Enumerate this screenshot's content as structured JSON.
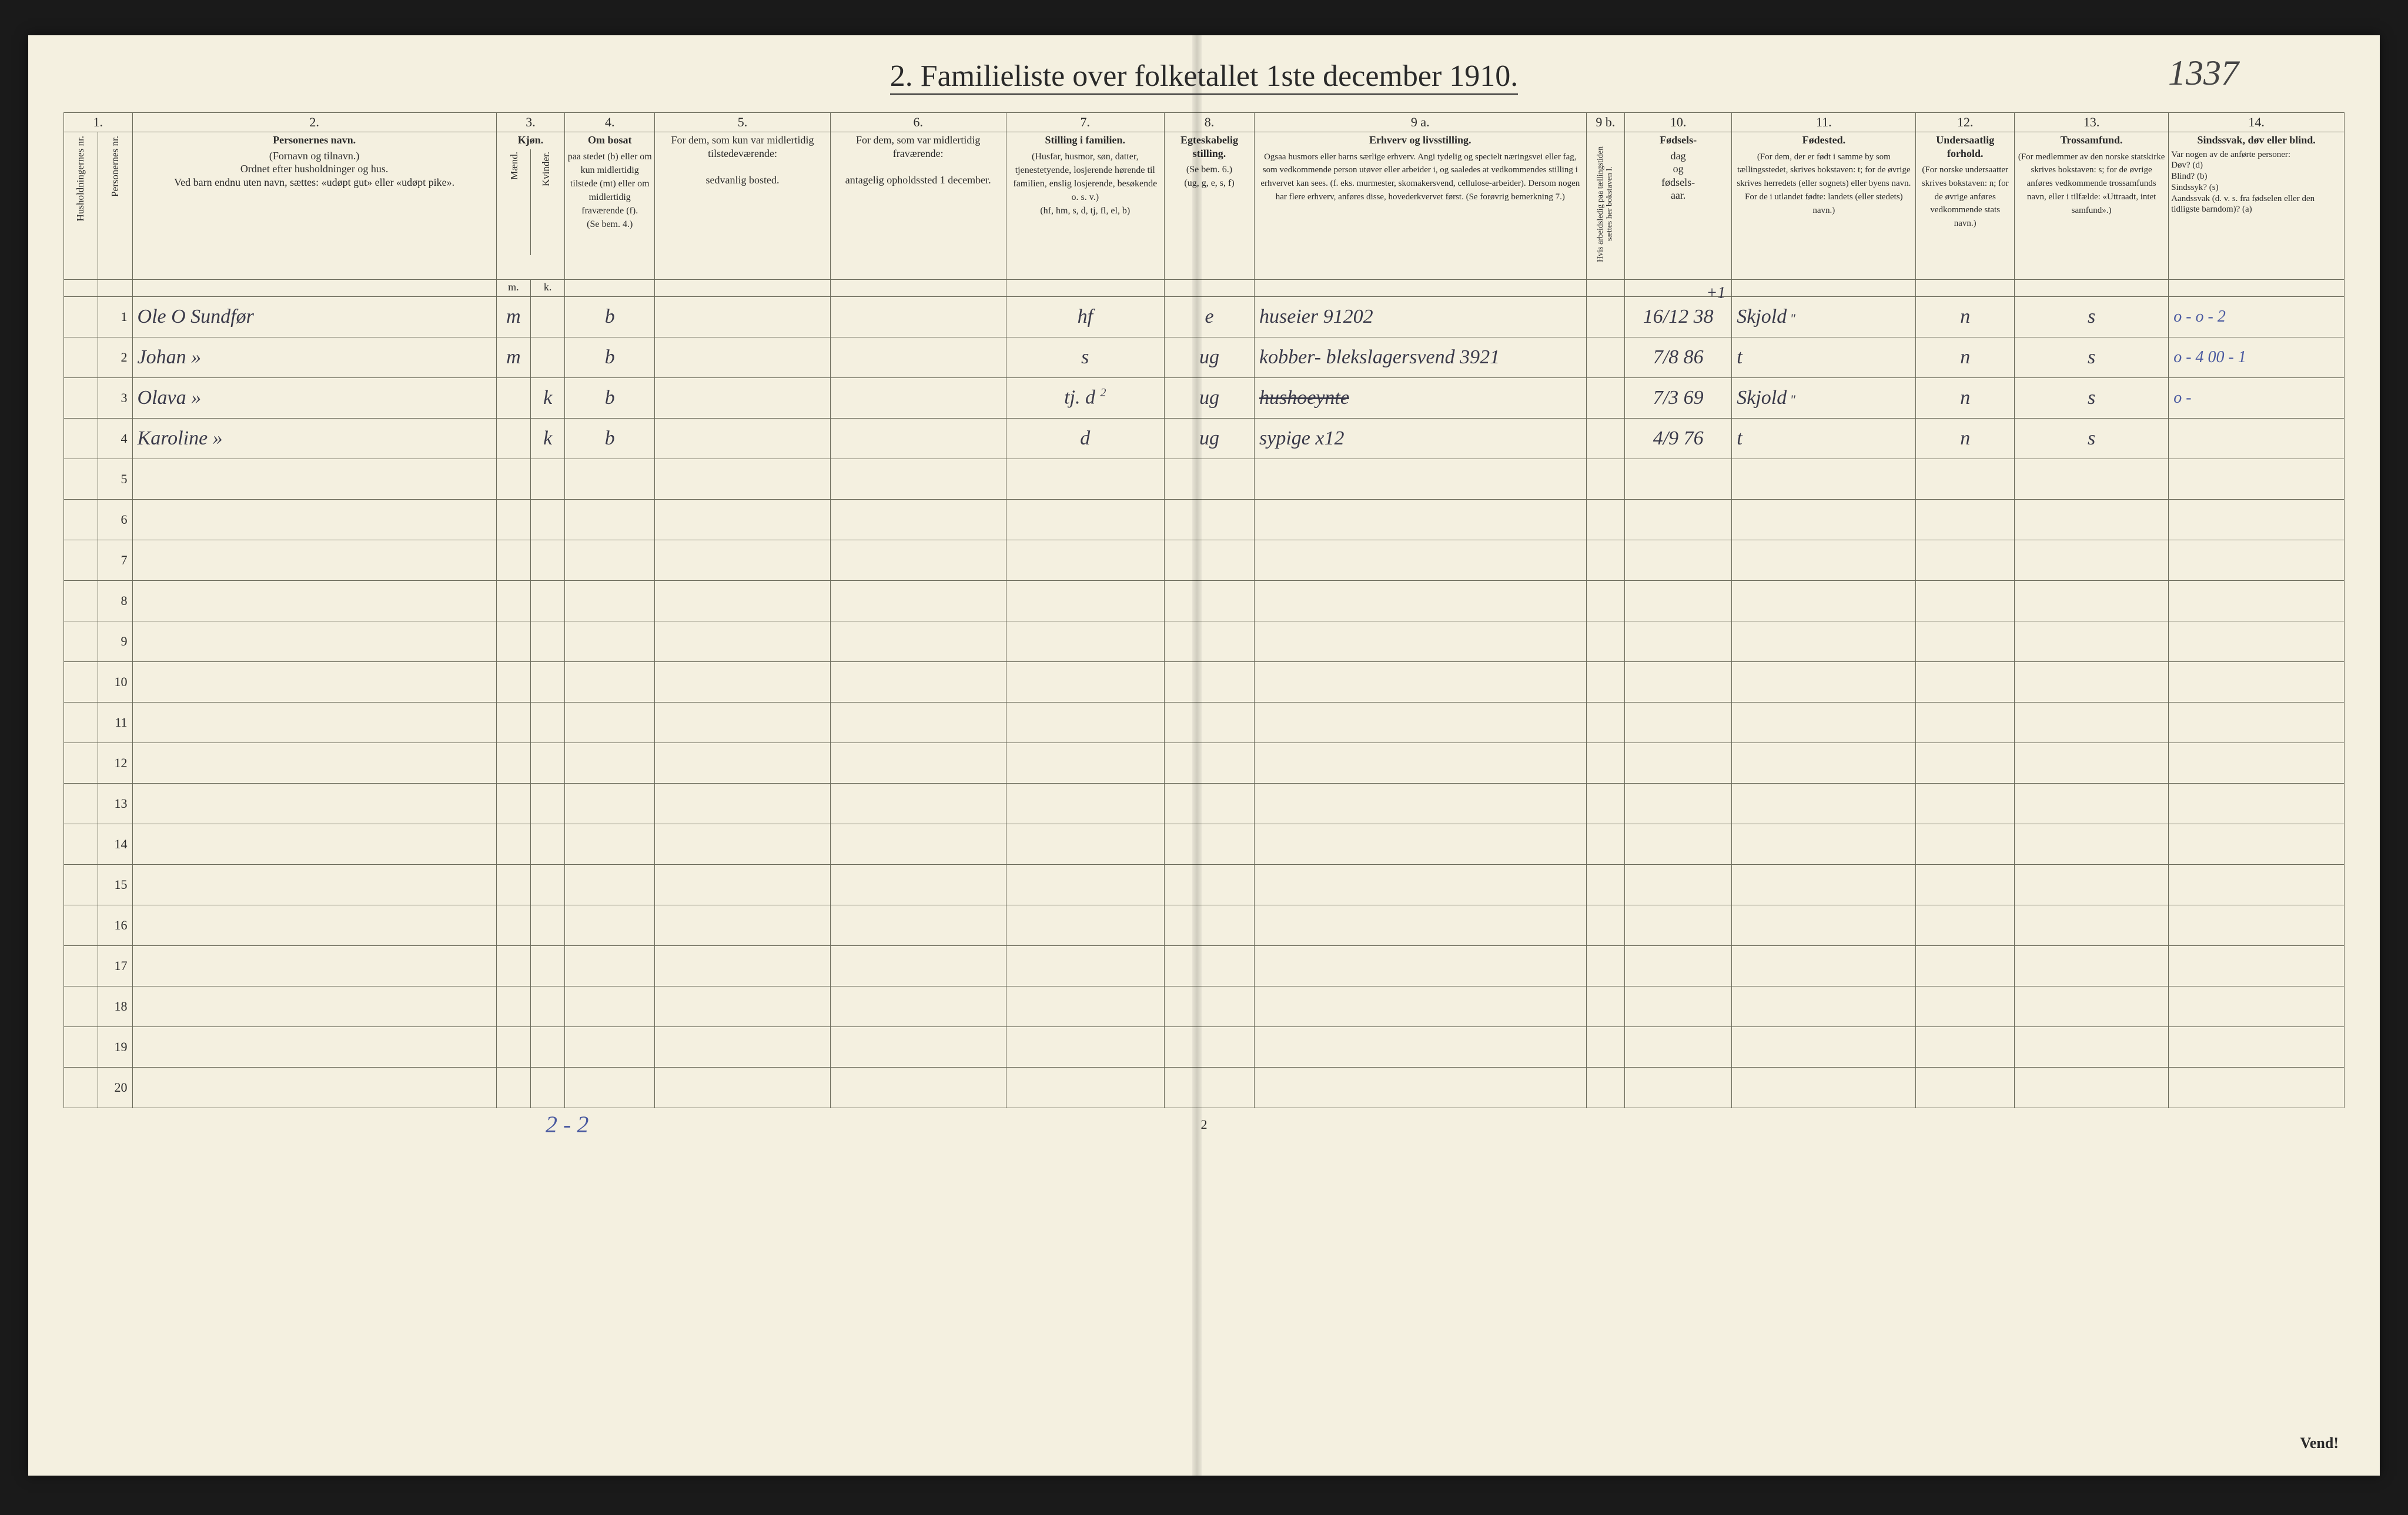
{
  "title": "2.  Familieliste over folketallet 1ste december 1910.",
  "handwritten_page_number": "1337",
  "footer_tally": "2 - 2",
  "footer_printed_pagenum": "2",
  "vend": "Vend!",
  "colors": {
    "paper": "#f4f0e0",
    "ink": "#2a2a2a",
    "rule": "#6a6a5a",
    "hand_ink": "#3a3a4a",
    "hand_blue": "#4a5aa0",
    "background": "#1a1a1a"
  },
  "typography": {
    "title_fontsize_pt": 39,
    "header_fontsize_pt": 14,
    "body_hand_fontsize_pt": 26,
    "rownum_fontsize_pt": 17
  },
  "column_numbers": [
    "1.",
    "2.",
    "3.",
    "4.",
    "5.",
    "6.",
    "7.",
    "8.",
    "9 a.",
    "9 b.",
    "10.",
    "11.",
    "12.",
    "13.",
    "14."
  ],
  "column_headers": {
    "c1a": "Husholdningernes nr.",
    "c1b": "Personernes nr.",
    "c2": {
      "title": "Personernes navn.",
      "body": "(Fornavn og tilnavn.)\nOrdnet efter husholdninger og hus.\nVed barn endnu uten navn, sættes: «udøpt gut» eller «udøpt pike»."
    },
    "c3": {
      "title": "Kjøn.",
      "sub_m": "Mænd.",
      "sub_k": "Kvinder.",
      "foot_m": "m.",
      "foot_k": "k."
    },
    "c4": {
      "title": "Om bosat",
      "body": "paa stedet (b) eller om kun midlertidig tilstede (mt) eller om midlertidig fraværende (f).\n(Se bem. 4.)"
    },
    "c5": {
      "title": "For dem, som kun var midlertidig tilstedeværende:",
      "body": "sedvanlig bosted."
    },
    "c6": {
      "title": "For dem, som var midlertidig fraværende:",
      "body": "antagelig opholdssted 1 december."
    },
    "c7": {
      "title": "Stilling i familien.",
      "body": "(Husfar, husmor, søn, datter, tjenestetyende, losjerende hørende til familien, enslig losjerende, besøkende o. s. v.)\n(hf, hm, s, d, tj, fl, el, b)"
    },
    "c8": {
      "title": "Egteskabelig stilling.",
      "body": "(Se bem. 6.)\n(ug, g, e, s, f)"
    },
    "c9a": {
      "title": "Erhverv og livsstilling.",
      "body": "Ogsaa husmors eller barns særlige erhverv. Angi tydelig og specielt næringsvei eller fag, som vedkommende person utøver eller arbeider i, og saaledes at vedkommendes stilling i erhvervet kan sees. (f. eks. murmester, skomakersvend, cellulose-arbeider). Dersom nogen har flere erhverv, anføres disse, hovederkvervet først.\n(Se forøvrig bemerkning 7.)"
    },
    "c9b": "Hvis arbeidsledig paa tællingstiden sættes her bokstaven l.",
    "c10": {
      "title": "Fødsels-",
      "body": "dag\nog\nfødsels-\naar."
    },
    "c11": {
      "title": "Fødested.",
      "body": "(For dem, der er født i samme by som tællingsstedet, skrives bokstaven: t; for de øvrige skrives herredets (eller sognets) eller byens navn. For de i utlandet fødte: landets (eller stedets) navn.)"
    },
    "c12": {
      "title": "Undersaatlig forhold.",
      "body": "(For norske undersaatter skrives bokstaven: n; for de øvrige anføres vedkommende stats navn.)"
    },
    "c13": {
      "title": "Trossamfund.",
      "body": "(For medlemmer av den norske statskirke skrives bokstaven: s; for de øvrige anføres vedkommende trossamfunds navn, eller i tilfælde: «Uttraadt, intet samfund».)"
    },
    "c14": {
      "title": "Sindssvak, døv eller blind.",
      "body": "Var nogen av de anførte personer:\nDøv?        (d)\nBlind?       (b)\nSindssyk?  (s)\nAandssvak (d. v. s. fra fødselen eller den tidligste barndom)? (a)"
    }
  },
  "rows": [
    {
      "n": "1",
      "name": "Ole O Sundfør",
      "sex": "m",
      "bosat": "b",
      "c5": "",
      "c6": "",
      "fam": "hf",
      "egte": "e",
      "erhverv": "huseier               91202",
      "c9b": "",
      "fod": "16/12 38",
      "fodested": "Skjold",
      "under": "n",
      "tros": "s",
      "c14": "o - o -   2"
    },
    {
      "n": "2",
      "name": "Johan        »",
      "sex": "m",
      "bosat": "b",
      "c5": "",
      "c6": "",
      "fam": "s",
      "egte": "ug",
      "erhverv": "kobber- blekslagersvend   3921",
      "c9b": "",
      "fod": "7/8 86",
      "fodested": "t",
      "under": "n",
      "tros": "s",
      "c14": "o - 4 00 -  1"
    },
    {
      "n": "3",
      "name": "Olava        »",
      "sex": "k",
      "bosat": "b",
      "c5": "",
      "c6": "",
      "fam": "tj. d",
      "egte": "ug",
      "erhverv": "hushoeynte",
      "erhverv_strike": true,
      "c9b": "",
      "fod": "7/3 69",
      "fodested": "Skjold",
      "under": "n",
      "tros": "s",
      "c14": "o -"
    },
    {
      "n": "4",
      "name": "Karoline     »",
      "sex": "k",
      "bosat": "b",
      "c5": "",
      "c6": "",
      "fam": "d",
      "egte": "ug",
      "erhverv": "sypige  x12",
      "c9b": "",
      "fod": "4/9 76",
      "fodested": "t",
      "under": "n",
      "tros": "s",
      "c14": ""
    },
    {
      "n": "5"
    },
    {
      "n": "6"
    },
    {
      "n": "7"
    },
    {
      "n": "8"
    },
    {
      "n": "9"
    },
    {
      "n": "10"
    },
    {
      "n": "11"
    },
    {
      "n": "12"
    },
    {
      "n": "13"
    },
    {
      "n": "14"
    },
    {
      "n": "15"
    },
    {
      "n": "16"
    },
    {
      "n": "17"
    },
    {
      "n": "18"
    },
    {
      "n": "19"
    },
    {
      "n": "20"
    }
  ],
  "column_widths_pct": [
    1.6,
    1.6,
    17,
    1.6,
    1.6,
    4.2,
    8.2,
    8.2,
    7.4,
    4.2,
    15.5,
    1.8,
    5.0,
    8.6,
    4.6,
    7.2,
    8.2
  ],
  "overlay_c10_plus1": "+1",
  "overlay_c7_row3_superscript": "2",
  "overlay_c11_quote": "\""
}
